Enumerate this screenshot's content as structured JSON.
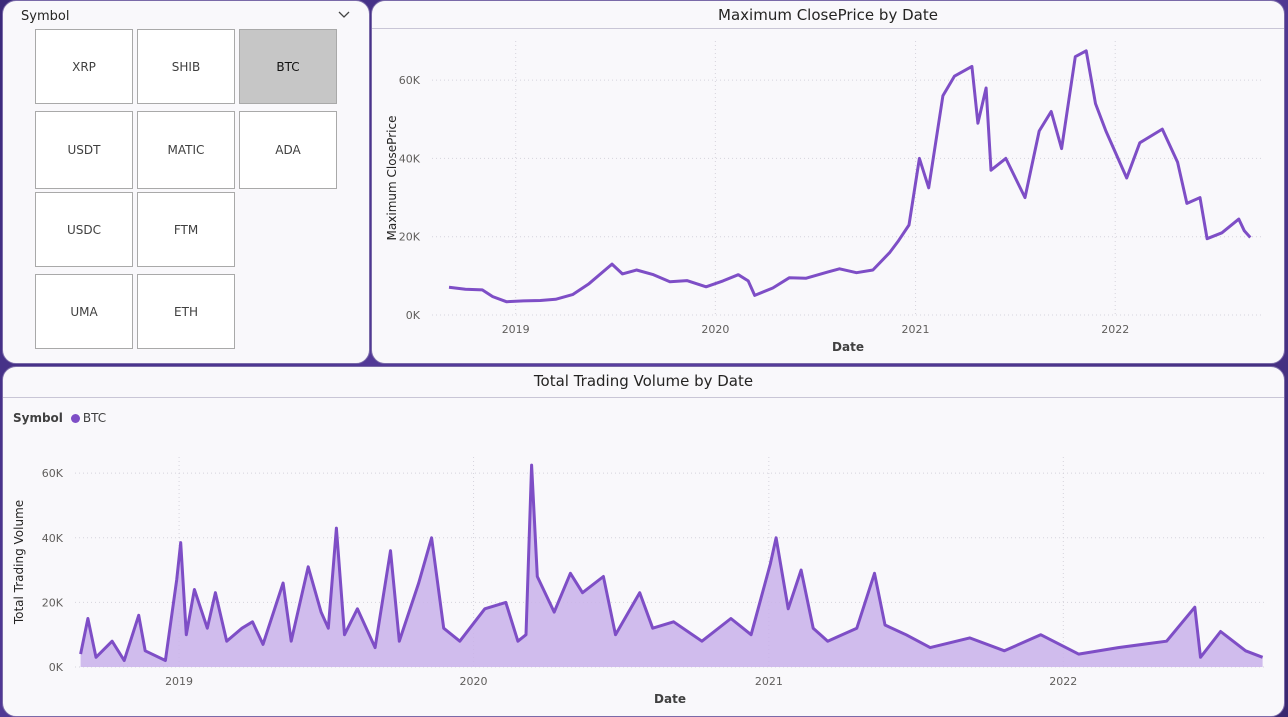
{
  "slicer": {
    "header": "Symbol",
    "items": [
      {
        "label": "XRP",
        "selected": false
      },
      {
        "label": "SHIB",
        "selected": false
      },
      {
        "label": "BTC",
        "selected": true
      },
      {
        "label": "USDT",
        "selected": false
      },
      {
        "label": "MATIC",
        "selected": false
      },
      {
        "label": "ADA",
        "selected": false
      },
      {
        "label": "USDC",
        "selected": false
      },
      {
        "label": "FTM",
        "selected": false
      },
      {
        "label": "UMA",
        "selected": false
      },
      {
        "label": "ETH",
        "selected": false
      }
    ]
  },
  "colors": {
    "series": "#7e4ec6",
    "area": "#c9b2ea",
    "selected_tile": "#c6c6c6"
  },
  "chart_data": [
    {
      "type": "line",
      "title": "Maximum ClosePrice by Date",
      "xlabel": "Date",
      "ylabel": "Maximum ClosePrice",
      "ylim": [
        0,
        70000
      ],
      "yticks": [
        "0K",
        "20K",
        "40K",
        "60K"
      ],
      "xticks": [
        "2019",
        "2020",
        "2021",
        "2022"
      ],
      "grid": true,
      "series": [
        {
          "name": "BTC",
          "points": [
            [
              "2018-09-01",
              7100
            ],
            [
              "2018-10-01",
              6600
            ],
            [
              "2018-11-01",
              6400
            ],
            [
              "2018-11-20",
              4700
            ],
            [
              "2018-12-15",
              3400
            ],
            [
              "2019-01-15",
              3600
            ],
            [
              "2019-02-15",
              3700
            ],
            [
              "2019-03-15",
              4000
            ],
            [
              "2019-04-15",
              5200
            ],
            [
              "2019-05-15",
              8000
            ],
            [
              "2019-06-26",
              13000
            ],
            [
              "2019-07-15",
              10500
            ],
            [
              "2019-08-10",
              11500
            ],
            [
              "2019-09-10",
              10300
            ],
            [
              "2019-10-10",
              8500
            ],
            [
              "2019-11-10",
              8800
            ],
            [
              "2019-12-15",
              7200
            ],
            [
              "2020-01-15",
              8700
            ],
            [
              "2020-02-12",
              10300
            ],
            [
              "2020-03-01",
              8700
            ],
            [
              "2020-03-13",
              5000
            ],
            [
              "2020-04-15",
              6900
            ],
            [
              "2020-05-15",
              9500
            ],
            [
              "2020-06-15",
              9400
            ],
            [
              "2020-07-25",
              11000
            ],
            [
              "2020-08-15",
              11800
            ],
            [
              "2020-09-15",
              10800
            ],
            [
              "2020-10-15",
              11500
            ],
            [
              "2020-11-15",
              16000
            ],
            [
              "2020-12-01",
              19000
            ],
            [
              "2020-12-20",
              23000
            ],
            [
              "2021-01-08",
              40000
            ],
            [
              "2021-01-25",
              32500
            ],
            [
              "2021-02-20",
              56000
            ],
            [
              "2021-03-13",
              61000
            ],
            [
              "2021-04-14",
              63500
            ],
            [
              "2021-04-25",
              49000
            ],
            [
              "2021-05-10",
              58000
            ],
            [
              "2021-05-19",
              37000
            ],
            [
              "2021-06-15",
              40000
            ],
            [
              "2021-07-20",
              30000
            ],
            [
              "2021-08-15",
              47000
            ],
            [
              "2021-09-06",
              52000
            ],
            [
              "2021-09-25",
              42500
            ],
            [
              "2021-10-20",
              66000
            ],
            [
              "2021-11-09",
              67500
            ],
            [
              "2021-11-26",
              54000
            ],
            [
              "2021-12-15",
              47000
            ],
            [
              "2022-01-22",
              35000
            ],
            [
              "2022-02-15",
              44000
            ],
            [
              "2022-03-28",
              47500
            ],
            [
              "2022-04-25",
              39000
            ],
            [
              "2022-05-12",
              28500
            ],
            [
              "2022-06-05",
              30000
            ],
            [
              "2022-06-18",
              19500
            ],
            [
              "2022-07-15",
              21000
            ],
            [
              "2022-08-15",
              24500
            ],
            [
              "2022-08-25",
              21500
            ],
            [
              "2022-09-05",
              19800
            ]
          ]
        }
      ]
    },
    {
      "type": "area",
      "title": "Total Trading Volume by Date",
      "xlabel": "Date",
      "ylabel": "Total Trading Volume",
      "ylim": [
        0,
        65000
      ],
      "yticks": [
        "0K",
        "20K",
        "40K",
        "60K"
      ],
      "xticks": [
        "2019",
        "2020",
        "2021",
        "2022"
      ],
      "grid": true,
      "legend": {
        "title": "Symbol",
        "position": "top-left",
        "entries": [
          "BTC"
        ]
      },
      "series": [
        {
          "name": "BTC",
          "points": [
            [
              "2018-09-01",
              4000
            ],
            [
              "2018-09-10",
              15000
            ],
            [
              "2018-09-20",
              3000
            ],
            [
              "2018-10-10",
              8000
            ],
            [
              "2018-10-25",
              2000
            ],
            [
              "2018-11-12",
              16000
            ],
            [
              "2018-11-20",
              5000
            ],
            [
              "2018-12-15",
              2000
            ],
            [
              "2018-12-29",
              27000
            ],
            [
              "2019-01-03",
              38500
            ],
            [
              "2019-01-10",
              10000
            ],
            [
              "2019-01-20",
              24000
            ],
            [
              "2019-02-05",
              12000
            ],
            [
              "2019-02-15",
              23000
            ],
            [
              "2019-03-01",
              8000
            ],
            [
              "2019-03-20",
              12000
            ],
            [
              "2019-04-02",
              14000
            ],
            [
              "2019-04-15",
              7000
            ],
            [
              "2019-05-10",
              26000
            ],
            [
              "2019-05-20",
              8000
            ],
            [
              "2019-06-10",
              31000
            ],
            [
              "2019-06-26",
              17000
            ],
            [
              "2019-07-05",
              12000
            ],
            [
              "2019-07-15",
              43000
            ],
            [
              "2019-07-25",
              10000
            ],
            [
              "2019-08-10",
              18000
            ],
            [
              "2019-09-01",
              6000
            ],
            [
              "2019-09-20",
              36000
            ],
            [
              "2019-10-01",
              8000
            ],
            [
              "2019-10-25",
              26000
            ],
            [
              "2019-11-10",
              40000
            ],
            [
              "2019-11-25",
              12000
            ],
            [
              "2019-12-15",
              8000
            ],
            [
              "2020-01-15",
              18000
            ],
            [
              "2020-02-10",
              20000
            ],
            [
              "2020-02-25",
              8000
            ],
            [
              "2020-03-06",
              10000
            ],
            [
              "2020-03-13",
              62500
            ],
            [
              "2020-03-20",
              28000
            ],
            [
              "2020-04-10",
              17000
            ],
            [
              "2020-04-30",
              29000
            ],
            [
              "2020-05-15",
              23000
            ],
            [
              "2020-06-10",
              28000
            ],
            [
              "2020-06-25",
              10000
            ],
            [
              "2020-07-25",
              23000
            ],
            [
              "2020-08-10",
              12000
            ],
            [
              "2020-09-05",
              14000
            ],
            [
              "2020-10-10",
              8000
            ],
            [
              "2020-11-15",
              15000
            ],
            [
              "2020-12-10",
              10000
            ],
            [
              "2021-01-03",
              32000
            ],
            [
              "2021-01-10",
              40000
            ],
            [
              "2021-01-25",
              18000
            ],
            [
              "2021-02-10",
              30000
            ],
            [
              "2021-02-25",
              12000
            ],
            [
              "2021-03-15",
              8000
            ],
            [
              "2021-04-20",
              12000
            ],
            [
              "2021-05-12",
              29000
            ],
            [
              "2021-05-25",
              13000
            ],
            [
              "2021-06-20",
              10000
            ],
            [
              "2021-07-20",
              6000
            ],
            [
              "2021-09-07",
              9000
            ],
            [
              "2021-10-20",
              5000
            ],
            [
              "2021-12-04",
              10000
            ],
            [
              "2022-01-20",
              4000
            ],
            [
              "2022-03-10",
              6000
            ],
            [
              "2022-05-09",
              8000
            ],
            [
              "2022-06-13",
              18500
            ],
            [
              "2022-06-20",
              3000
            ],
            [
              "2022-07-15",
              11000
            ],
            [
              "2022-08-15",
              5000
            ],
            [
              "2022-09-05",
              3000
            ]
          ]
        }
      ]
    }
  ]
}
